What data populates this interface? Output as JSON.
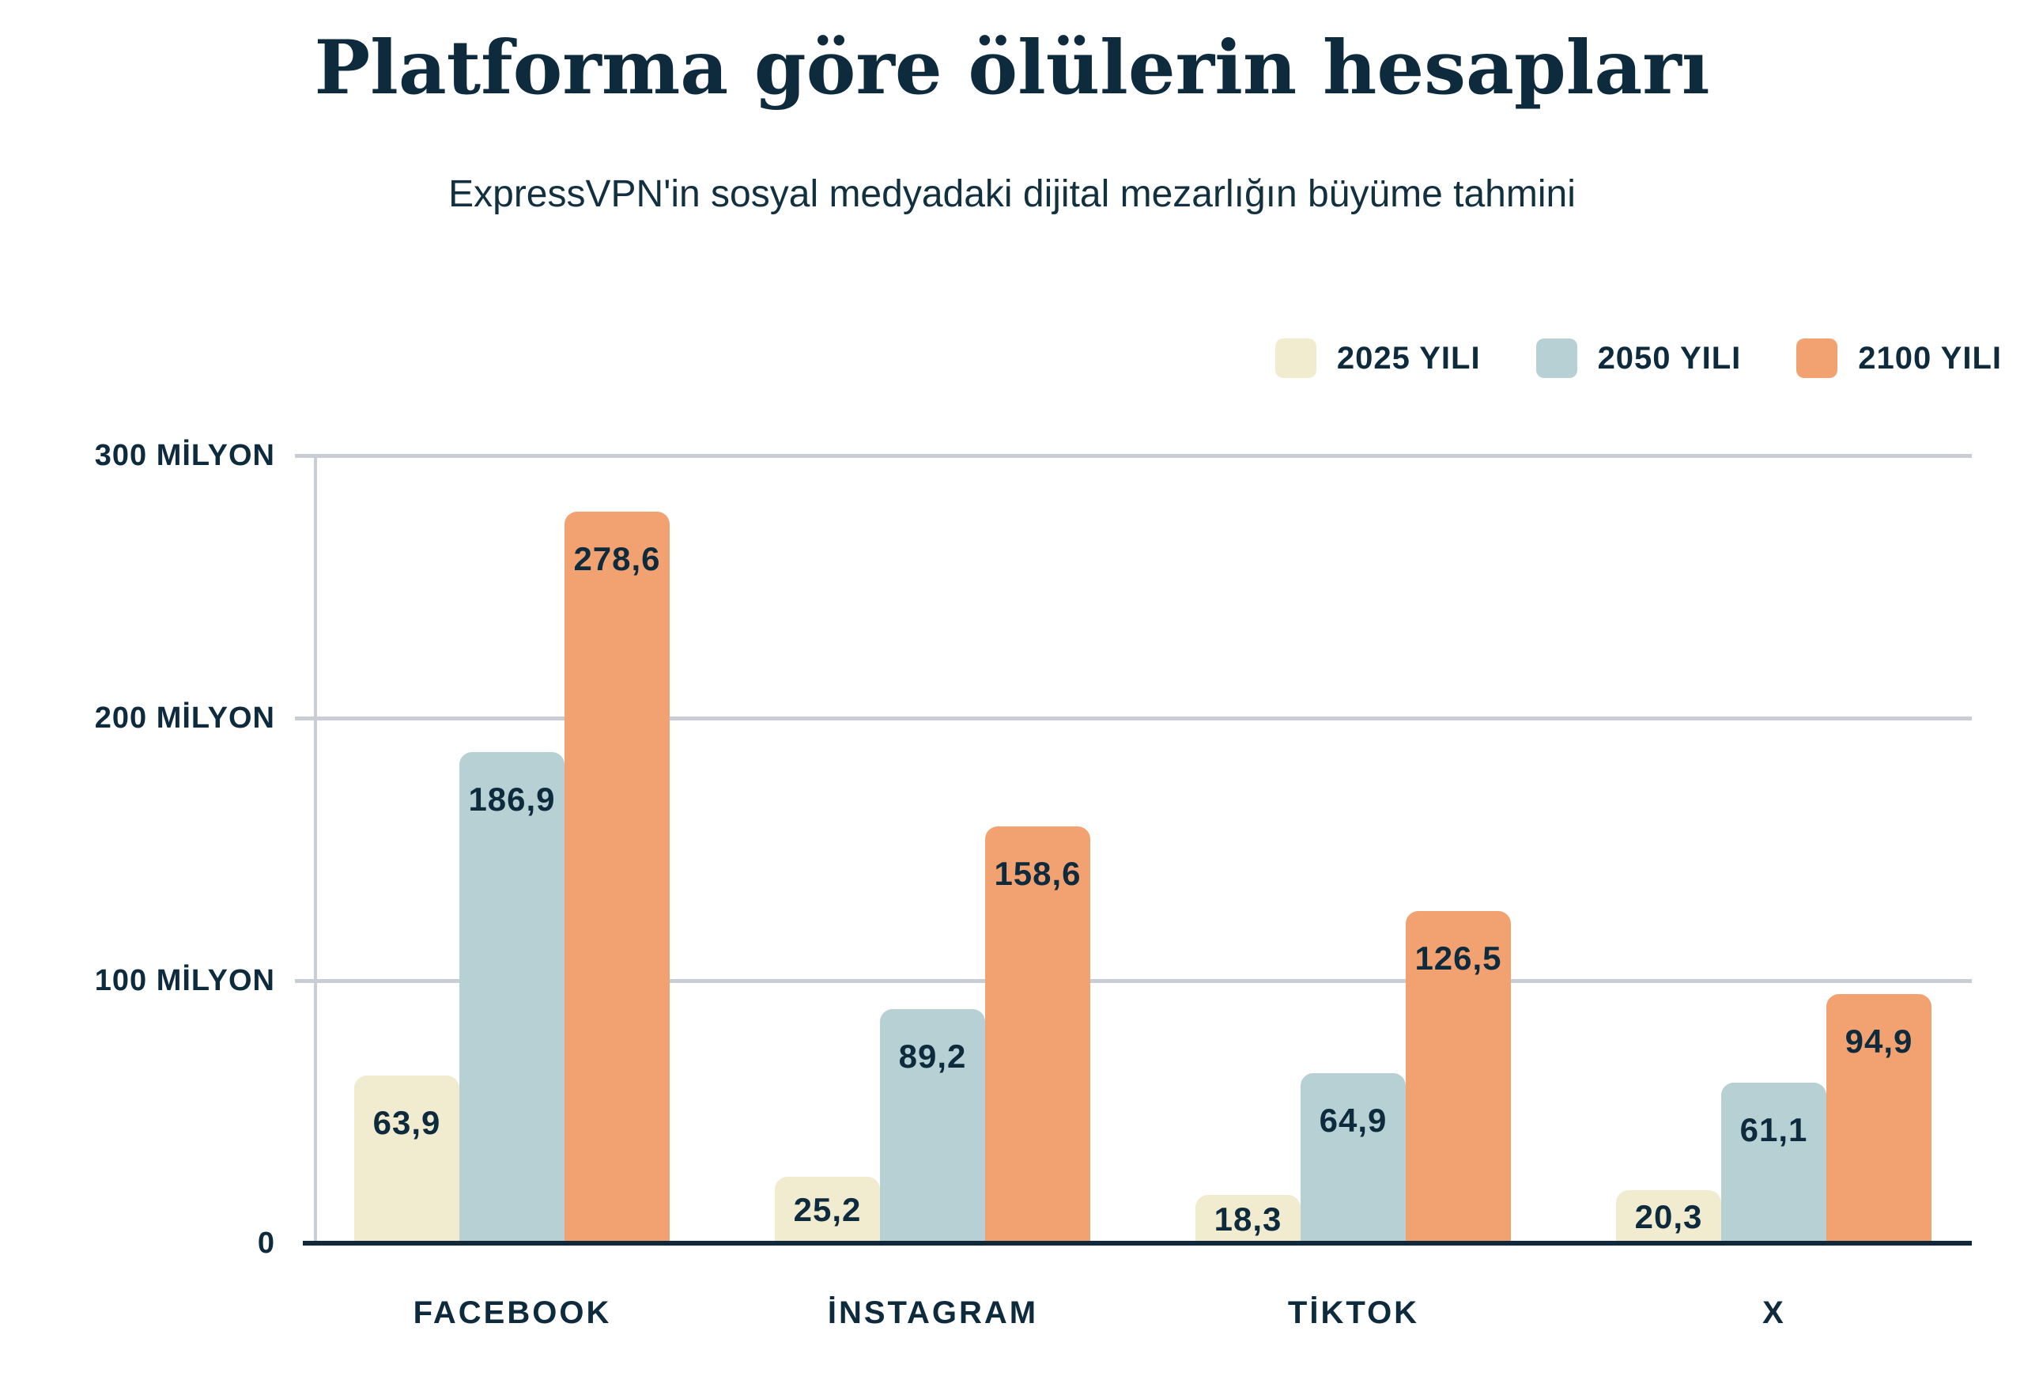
{
  "title": "Platforma göre ölülerin hesapları",
  "subtitle": "ExpressVPN'in sosyal medyadaki dijital mezarlığın büyüme tahmini",
  "colors": {
    "background": "#FFFFFF",
    "text_navy": "#0E2B3E",
    "axis_line": "#12293B",
    "gridline": "#C9CED6",
    "series_2025": "#F1EBD0",
    "series_2050": "#B6D0D3",
    "series_2100": "#F2A271"
  },
  "legend": {
    "items": [
      {
        "label": "2025 YILI",
        "color": "#F1EBD0"
      },
      {
        "label": "2050 YILI",
        "color": "#B6D0D3"
      },
      {
        "label": "2100 YILI",
        "color": "#F2A271"
      }
    ]
  },
  "chart_data": {
    "type": "bar",
    "title": "Platforma göre ölülerin hesapları",
    "subtitle": "ExpressVPN'in sosyal medyadaki dijital mezarlığın büyüme tahmini",
    "categories": [
      "FACEBOOK",
      "İNSTAGRAM",
      "TİKTOK",
      "X"
    ],
    "series": [
      {
        "name": "2025 YILI",
        "color": "#F1EBD0",
        "values": [
          63.9,
          25.2,
          18.3,
          20.3
        ],
        "labels": [
          "63,9",
          "25,2",
          "18,3",
          "20,3"
        ]
      },
      {
        "name": "2050 YILI",
        "color": "#B6D0D3",
        "values": [
          186.9,
          89.2,
          64.9,
          61.1
        ],
        "labels": [
          "186,9",
          "89,2",
          "64,9",
          "61,1"
        ]
      },
      {
        "name": "2100 YILI",
        "color": "#F2A271",
        "values": [
          278.6,
          158.6,
          126.5,
          94.9
        ],
        "labels": [
          "278,6",
          "158,6",
          "126,5",
          "94,9"
        ]
      }
    ],
    "y_axis": {
      "unit": "milyon",
      "tick_values": [
        0,
        100,
        200,
        300
      ],
      "tick_labels": [
        "0",
        "100 MİLYON",
        "200 MİLYON",
        "300 MİLYON"
      ],
      "min": 0,
      "max": 300
    },
    "grid": true,
    "legend_position": "top-right"
  }
}
